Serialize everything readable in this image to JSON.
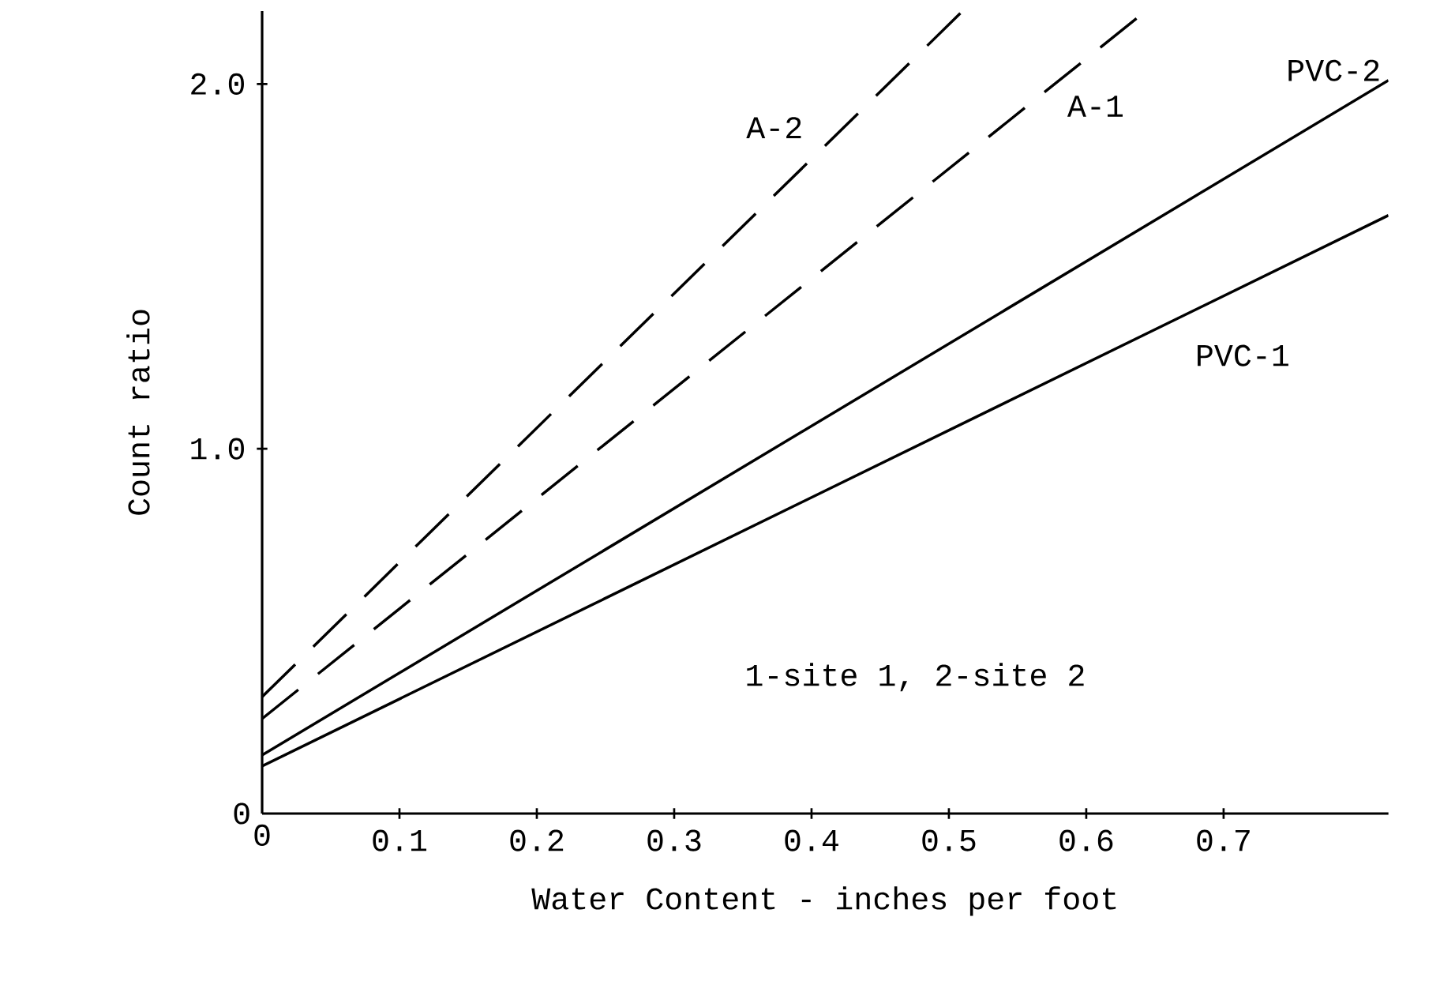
{
  "chart_data": {
    "type": "line",
    "xlabel": "Water Content - inches per foot",
    "ylabel": "Count ratio",
    "xlim": [
      0,
      0.82
    ],
    "ylim": [
      0,
      2.2
    ],
    "xticks": [
      0,
      0.1,
      0.2,
      0.3,
      0.4,
      0.5,
      0.6,
      0.7
    ],
    "yticks": [
      0,
      {
        "value": 1,
        "label": "1.0"
      },
      {
        "value": 2,
        "label": "2.0"
      }
    ],
    "grid": false,
    "marker": "none",
    "annotations": [
      "1-site 1, 2-site 2"
    ],
    "series": [
      {
        "name": "A-2",
        "color": "#000000",
        "line_style": "dashed",
        "x": [
          0,
          0.51
        ],
        "values": [
          0.32,
          2.2
        ]
      },
      {
        "name": "A-1",
        "color": "#000000",
        "line_style": "dashed",
        "x": [
          0,
          0.64
        ],
        "values": [
          0.26,
          2.19
        ]
      },
      {
        "name": "PVC-2",
        "color": "#000000",
        "line_style": "solid",
        "x": [
          0,
          0.82
        ],
        "values": [
          0.16,
          2.01
        ]
      },
      {
        "name": "PVC-1",
        "color": "#000000",
        "line_style": "solid",
        "x": [
          0,
          0.82
        ],
        "values": [
          0.13,
          1.64
        ]
      }
    ]
  }
}
